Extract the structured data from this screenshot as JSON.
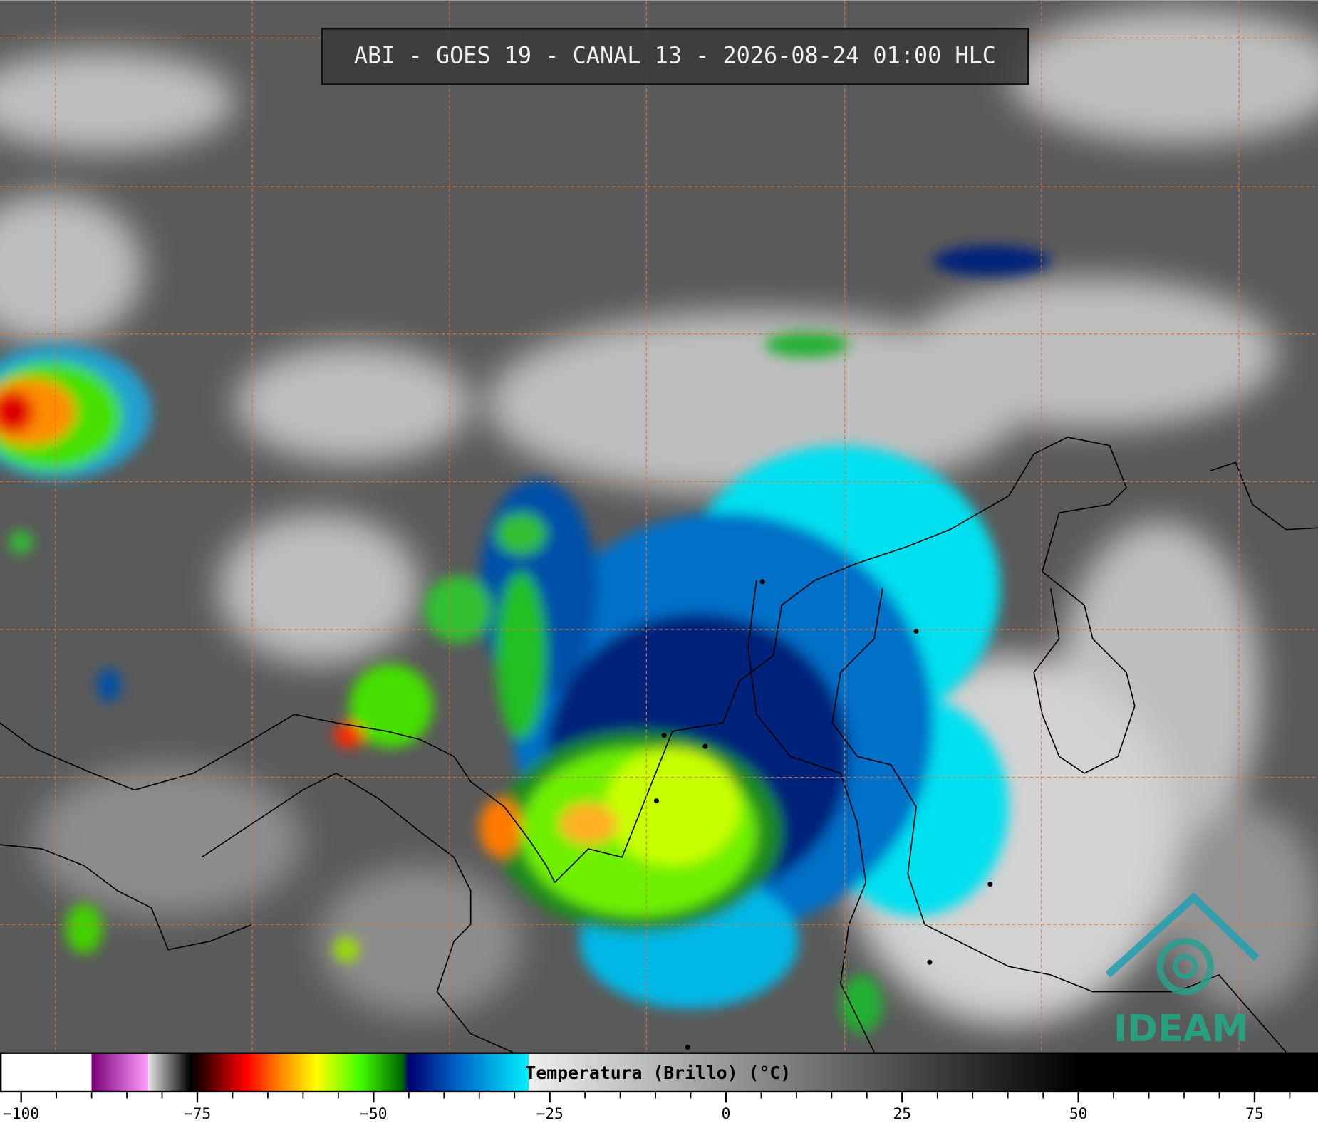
{
  "title": "ABI - GOES 19 - CANAL 13 - 2026-08-24 01:00 HLC",
  "colorbar": {
    "label": "Temperatura (Brillo) (°C)",
    "xlim": [
      -103,
      84
    ],
    "xticks": [
      {
        "value": -100,
        "label": "−100"
      },
      {
        "value": -75,
        "label": "−75"
      },
      {
        "value": -50,
        "label": "−50"
      },
      {
        "value": -25,
        "label": "−25"
      },
      0,
      25,
      50,
      75
    ],
    "xminor": [
      -100,
      -95,
      -90,
      -85,
      -80,
      -75,
      -70,
      -65,
      -60,
      -55,
      -50,
      -45,
      -40,
      -35,
      -30,
      -25,
      -20,
      -15,
      -10,
      -5,
      0,
      5,
      10,
      15,
      20,
      25,
      30,
      35,
      40,
      45,
      50,
      55,
      60,
      65,
      70,
      75,
      80
    ],
    "colorscale": [
      [
        -103,
        "#ffffff"
      ],
      [
        -90,
        "#ffffff"
      ],
      [
        -90,
        "#7a007a"
      ],
      [
        -82,
        "#ff9cff"
      ],
      [
        -82,
        "#e6e6e6"
      ],
      [
        -76,
        "#000000"
      ],
      [
        -74,
        "#3a0000"
      ],
      [
        -68,
        "#ff0000"
      ],
      [
        -63,
        "#ff8c00"
      ],
      [
        -58,
        "#ffff00"
      ],
      [
        -52,
        "#44ff00"
      ],
      [
        -46,
        "#006a00"
      ],
      [
        -45,
        "#000070"
      ],
      [
        -38,
        "#0064c8"
      ],
      [
        -28,
        "#00eeff"
      ],
      [
        -28,
        "#eeeeee"
      ],
      [
        50,
        "#000000"
      ],
      [
        84,
        "#000000"
      ]
    ]
  },
  "logo": {
    "text": "IDEAM"
  }
}
